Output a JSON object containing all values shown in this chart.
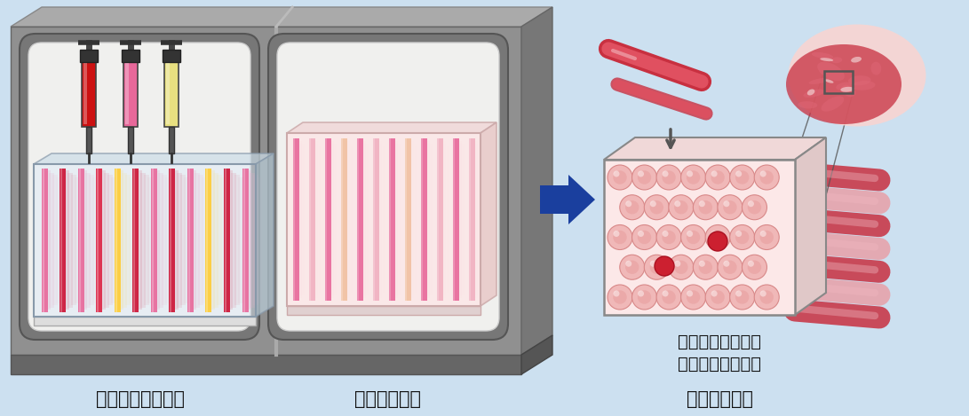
{
  "bg_color": "#cce0f0",
  "title_label1": "プリントユニット",
  "title_label2": "培養ユニット",
  "title_label3": "成型ユニット",
  "desc_line1": "繊維状細胞を集め",
  "desc_line2": "ステーキ肉に成型",
  "machine_gray": "#888888",
  "machine_top": "#aaaaaa",
  "machine_side": "#666666",
  "machine_base": "#777777",
  "panel_dark": "#999999",
  "panel_inner": "#dddddd",
  "arrow_color": "#1a3f9e",
  "label_fontsize": 15,
  "desc_fontsize": 13
}
